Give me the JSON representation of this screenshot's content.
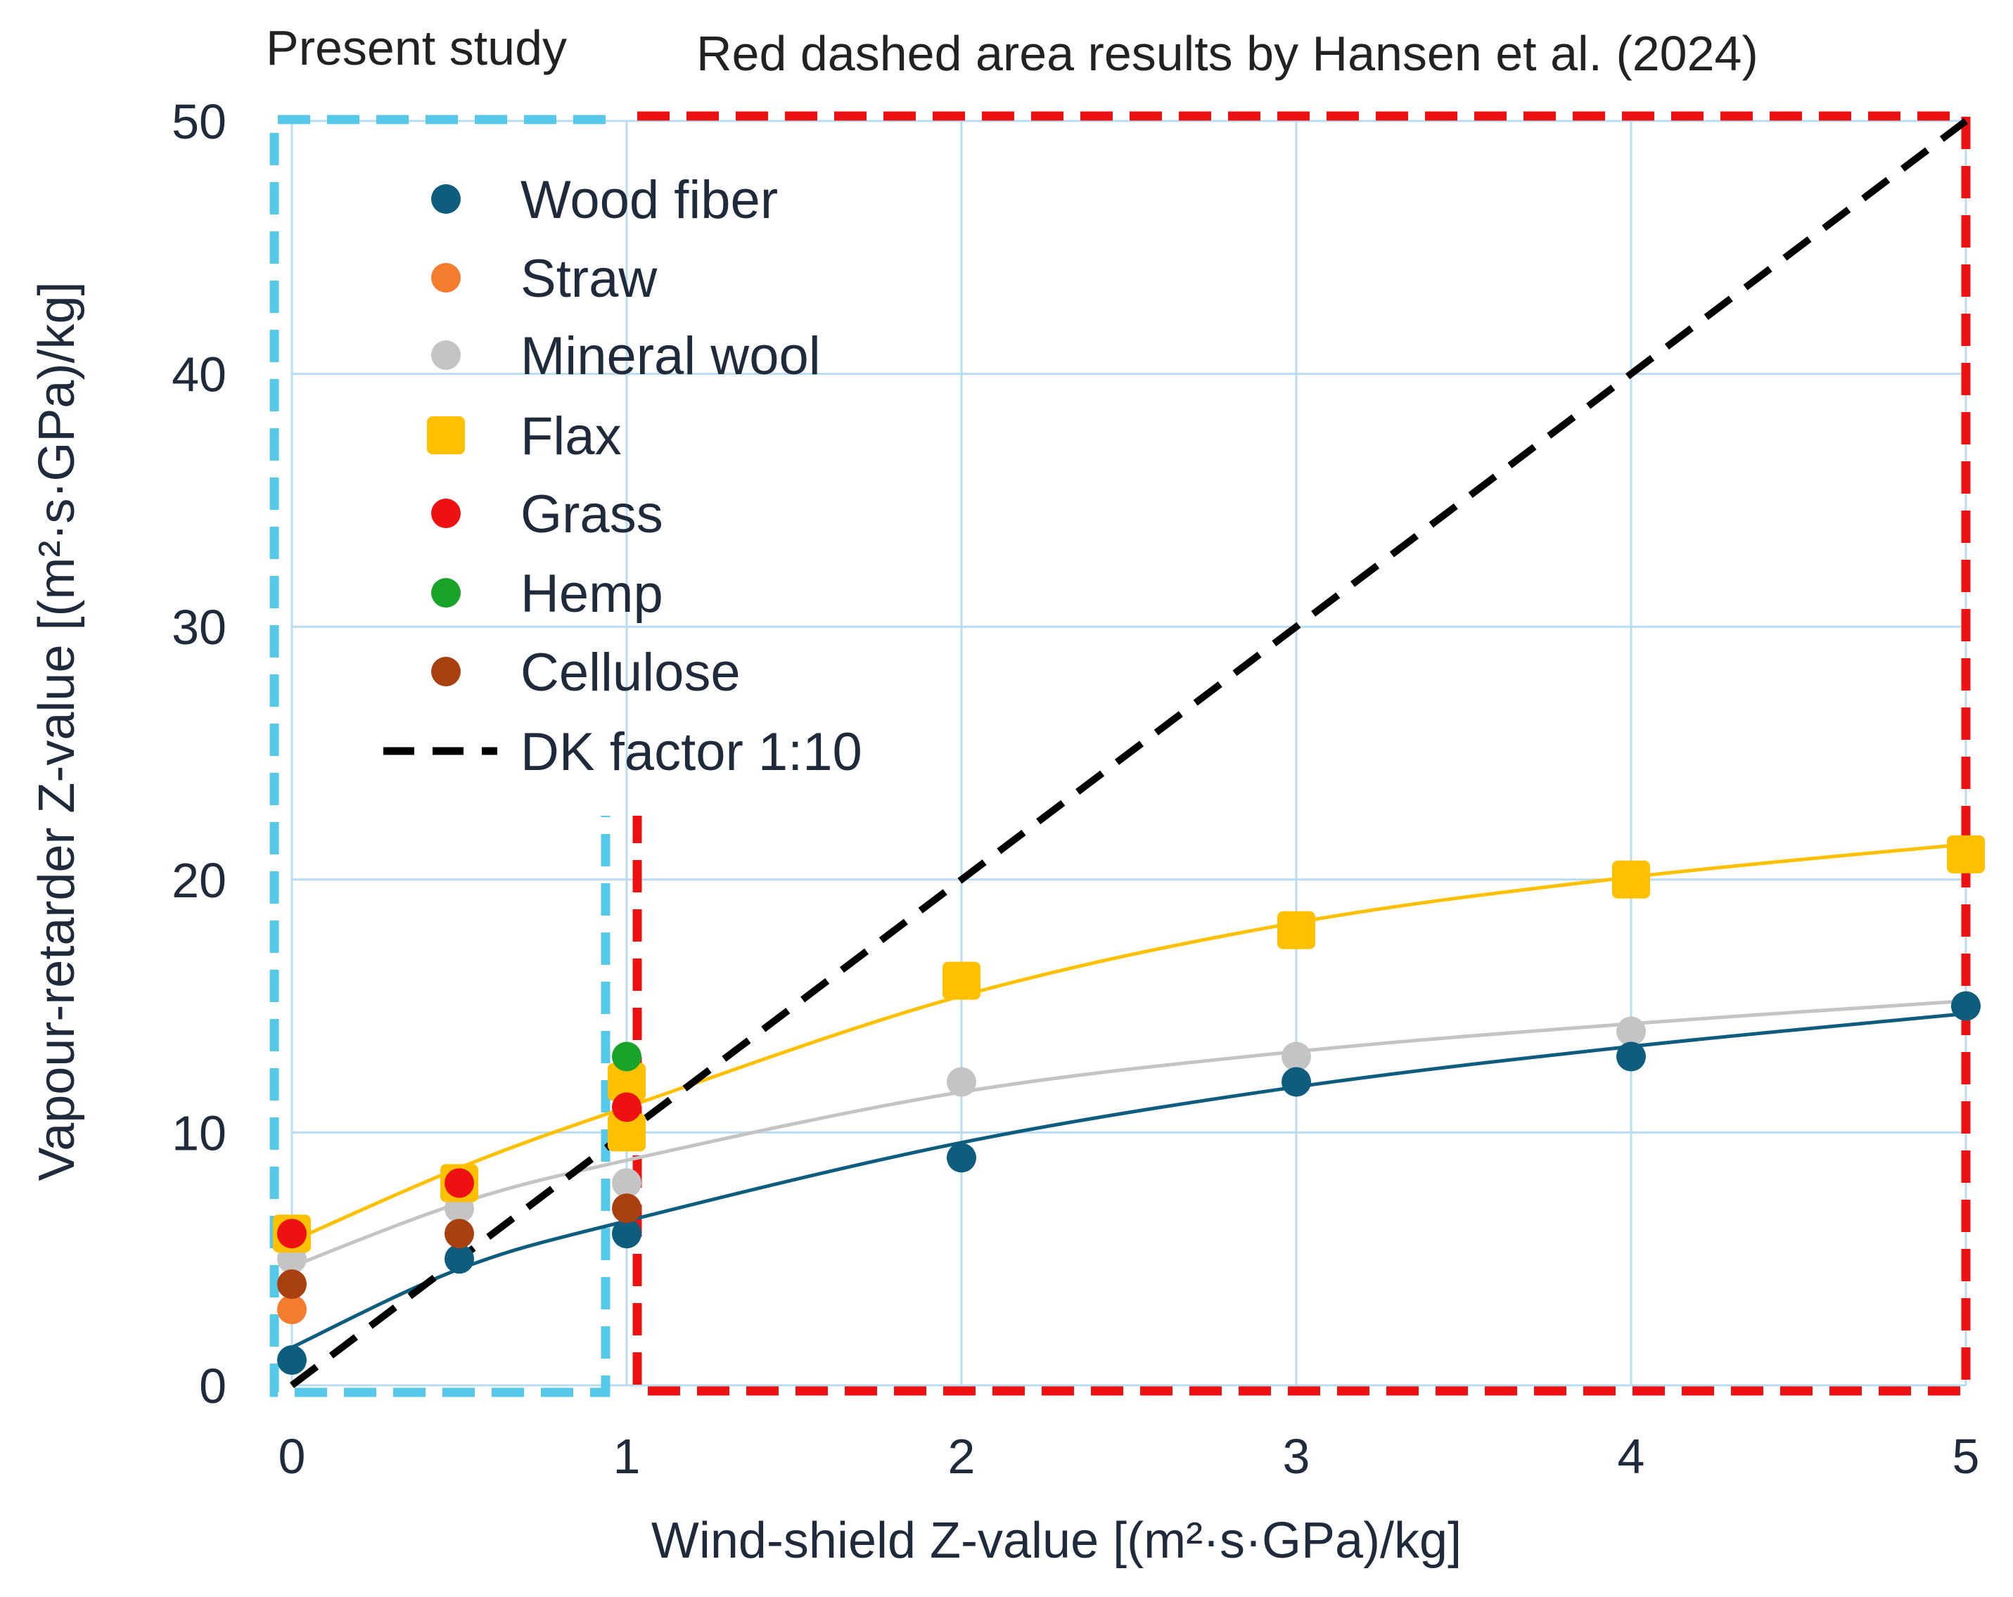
{
  "chart_data": {
    "type": "scatter",
    "header_left": "Present study",
    "header_right": "Red dashed area results by Hansen et al. (2024)",
    "xlabel": "Wind-shield Z-value  [(m²·s·GPa)/kg]",
    "ylabel": "Vapour-retarder Z-value  [(m²·s·GPa)/kg]",
    "xlim": [
      0,
      5
    ],
    "ylim": [
      0,
      50
    ],
    "x_ticks": [
      "0",
      "1",
      "2",
      "3",
      "4",
      "5"
    ],
    "y_ticks": [
      "0",
      "10",
      "20",
      "30",
      "40",
      "50"
    ],
    "grid": true,
    "legend_position": "top-left",
    "regions": [
      {
        "name": "present-study",
        "color": "#56c8ea",
        "x_range": [
          0,
          1
        ],
        "y_range": [
          0,
          50
        ]
      },
      {
        "name": "hansen-2024",
        "color": "#ee1111",
        "x_range": [
          1,
          5
        ],
        "y_range": [
          0,
          50
        ]
      }
    ],
    "series": [
      {
        "name": "Wood fiber",
        "color": "#0e5c7e",
        "marker": "circle",
        "x": [
          0,
          0.5,
          1,
          2,
          3,
          4,
          5
        ],
        "y": [
          1,
          5,
          6,
          9,
          12,
          13,
          15
        ],
        "fit": {
          "x": [
            0,
            0.5,
            1,
            2,
            3,
            4,
            5
          ],
          "y": [
            1.5,
            4.6,
            6.5,
            9.6,
            11.8,
            13.4,
            14.7
          ]
        }
      },
      {
        "name": "Straw",
        "color": "#f47c2e",
        "marker": "circle",
        "x": [
          0,
          0.5
        ],
        "y": [
          3,
          8
        ]
      },
      {
        "name": "Mineral wool",
        "color": "#c4c4c4",
        "marker": "circle",
        "x": [
          0,
          0.5,
          1,
          2,
          3,
          4,
          5
        ],
        "y": [
          5,
          7,
          8,
          12,
          13,
          14,
          15
        ],
        "fit": {
          "x": [
            0,
            0.5,
            1,
            2,
            3,
            4,
            5
          ],
          "y": [
            4.7,
            7.2,
            8.9,
            11.6,
            13.2,
            14.3,
            15.2
          ]
        }
      },
      {
        "name": "Flax",
        "color": "#ffc000",
        "marker": "square",
        "x": [
          0,
          0.5,
          1,
          1,
          2,
          3,
          4,
          5
        ],
        "y": [
          6,
          8,
          12,
          10,
          16,
          18,
          20,
          21
        ],
        "fit": {
          "x": [
            0,
            0.5,
            1,
            2,
            3,
            4,
            5
          ],
          "y": [
            5.7,
            8.6,
            11.0,
            15.4,
            18.3,
            20.1,
            21.4
          ]
        }
      },
      {
        "name": "Grass",
        "color": "#ee1111",
        "marker": "circle",
        "x": [
          0,
          0.5,
          1
        ],
        "y": [
          6,
          8,
          11
        ]
      },
      {
        "name": "Hemp",
        "color": "#1aa329",
        "marker": "circle",
        "x": [
          1
        ],
        "y": [
          13
        ]
      },
      {
        "name": "Cellulose",
        "color": "#a84010",
        "marker": "circle",
        "x": [
          0,
          0.5,
          1
        ],
        "y": [
          4,
          6,
          7
        ]
      },
      {
        "name": "DK factor 1:10",
        "color": "#000000",
        "marker": "dashed-line",
        "x": [
          0,
          5
        ],
        "y": [
          0,
          50
        ]
      }
    ]
  }
}
